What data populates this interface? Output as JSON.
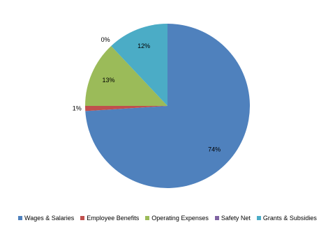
{
  "chart_data": {
    "type": "pie",
    "categories": [
      "Wages & Salaries",
      "Employee Benefits",
      "Operating Expenses",
      "Safety Net",
      "Grants & Subsidies"
    ],
    "values": [
      74,
      1,
      13,
      0,
      12
    ],
    "value_labels": [
      "74%",
      "1%",
      "13%",
      "0%",
      "12%"
    ],
    "colors": [
      "#4f81bd",
      "#c0504d",
      "#9bbb59",
      "#8064a2",
      "#4bacc6"
    ],
    "legend": "bottom"
  }
}
